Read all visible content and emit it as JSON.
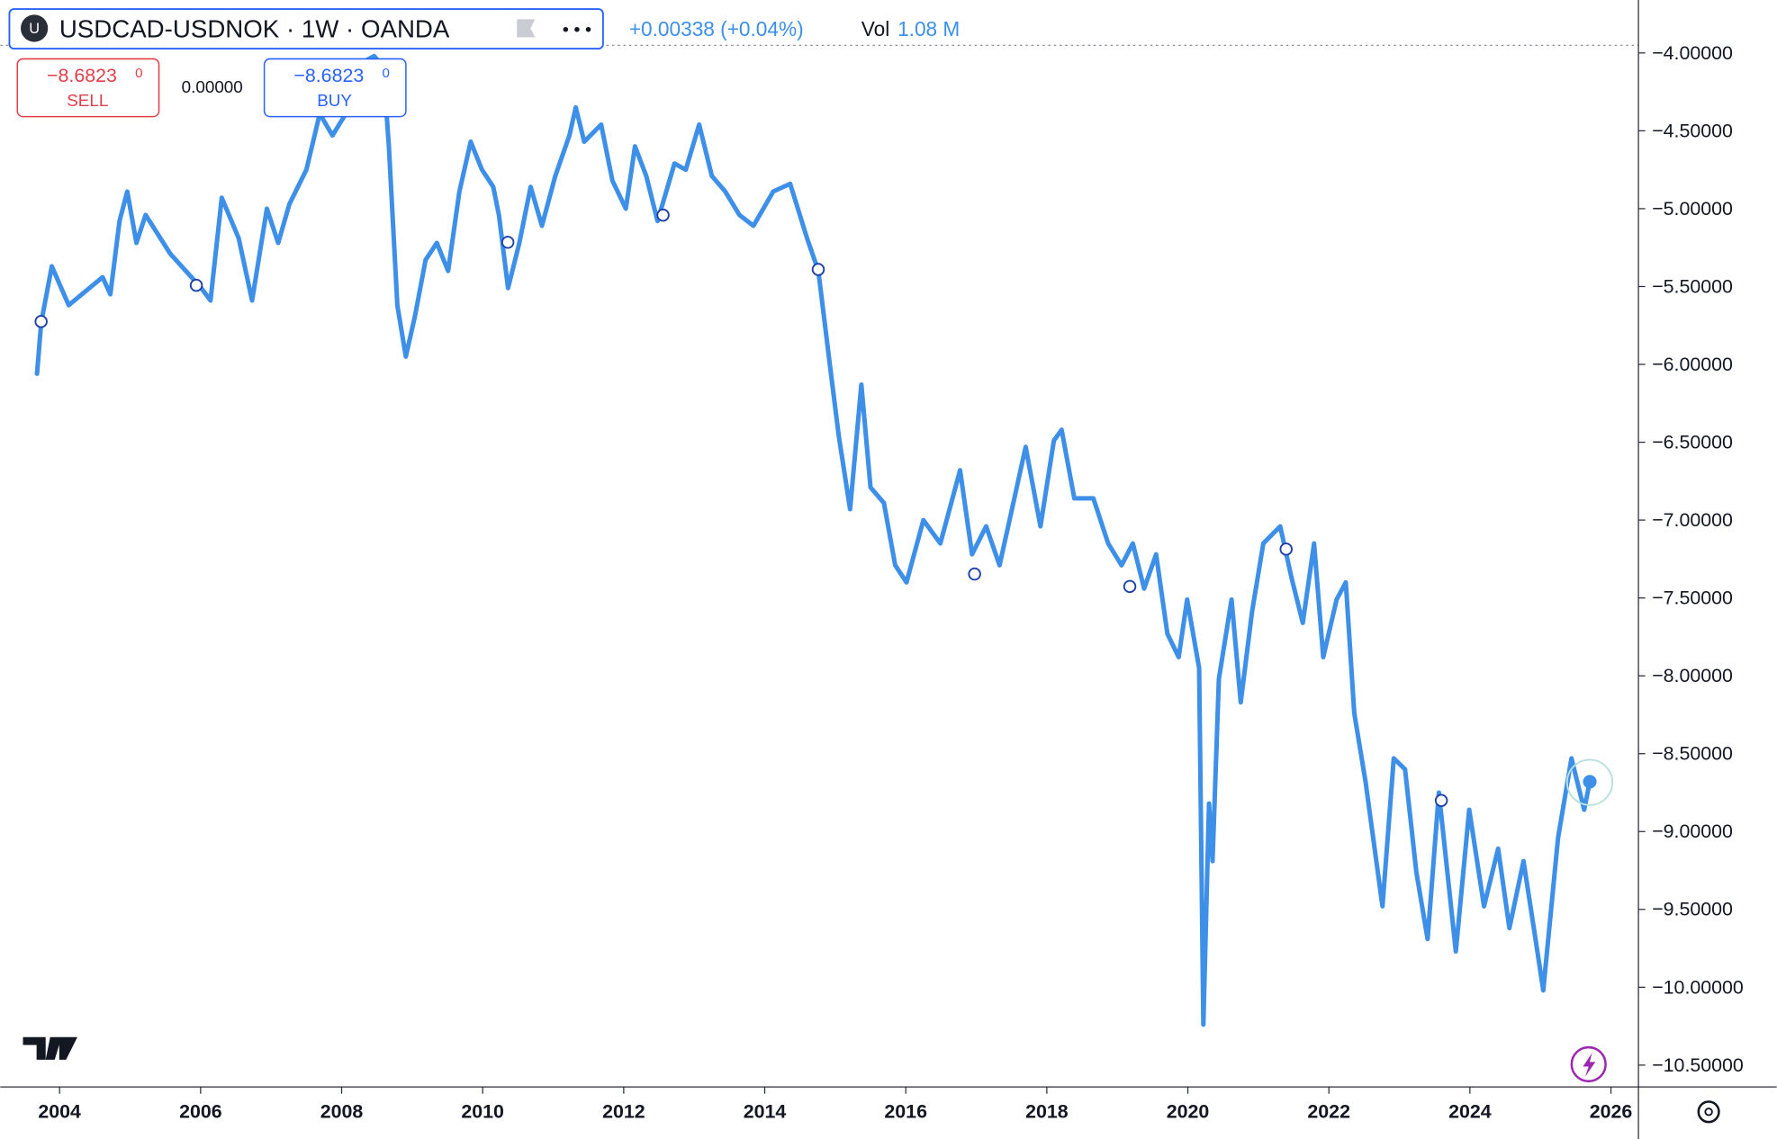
{
  "chart_data": {
    "type": "line",
    "title": "USDCAD-USDNOK · 1W · OANDA",
    "icon_letter": "U",
    "change": "+0.00338 (+0.04%)",
    "volume_label": "Vol",
    "volume": "1.08 M",
    "sell_price": "−8.6823",
    "sell_price_sup": "0",
    "sell_label": "SELL",
    "spread": "0.00000",
    "buy_price": "−8.6823",
    "buy_price_sup": "0",
    "buy_label": "BUY",
    "color": "#3d8fe8",
    "x": [
      2003.68,
      2003.74,
      2003.89,
      2004.13,
      2004.61,
      2004.72,
      2004.85,
      2004.96,
      2005.09,
      2005.22,
      2005.57,
      2006.01,
      2006.14,
      2006.3,
      2006.54,
      2006.73,
      2006.94,
      2007.1,
      2007.26,
      2007.5,
      2007.69,
      2007.87,
      2008.06,
      2008.3,
      2008.46,
      2008.59,
      2008.67,
      2008.79,
      2008.91,
      2009.04,
      2009.19,
      2009.35,
      2009.51,
      2009.67,
      2009.83,
      2009.99,
      2010.15,
      2010.23,
      2010.36,
      2010.52,
      2010.68,
      2010.84,
      2011.03,
      2011.23,
      2011.32,
      2011.44,
      2011.68,
      2011.84,
      2012.03,
      2012.16,
      2012.32,
      2012.48,
      2012.72,
      2012.88,
      2013.07,
      2013.25,
      2013.44,
      2013.64,
      2013.84,
      2014.12,
      2014.36,
      2014.6,
      2014.76,
      2014.92,
      2015.05,
      2015.21,
      2015.37,
      2015.5,
      2015.69,
      2015.85,
      2016.01,
      2016.25,
      2016.49,
      2016.77,
      2016.94,
      2017.14,
      2017.33,
      2017.54,
      2017.7,
      2017.91,
      2018.1,
      2018.21,
      2018.39,
      2018.66,
      2018.87,
      2019.06,
      2019.22,
      2019.38,
      2019.55,
      2019.71,
      2019.87,
      2019.99,
      2020.16,
      2020.22,
      2020.3,
      2020.35,
      2020.44,
      2020.62,
      2020.75,
      2020.91,
      2021.07,
      2021.31,
      2021.47,
      2021.63,
      2021.79,
      2021.92,
      2022.11,
      2022.24,
      2022.36,
      2022.52,
      2022.76,
      2022.92,
      2023.08,
      2023.24,
      2023.4,
      2023.56,
      2023.8,
      2023.99,
      2024.2,
      2024.4,
      2024.56,
      2024.76,
      2024.93,
      2025.04,
      2025.25,
      2025.44,
      2025.62,
      2025.7
    ],
    "values": [
      -6.06,
      -5.73,
      -5.37,
      -5.62,
      -5.44,
      -5.55,
      -5.08,
      -4.89,
      -5.22,
      -5.04,
      -5.29,
      -5.51,
      -5.59,
      -4.93,
      -5.19,
      -5.59,
      -5.0,
      -5.22,
      -4.97,
      -4.75,
      -4.39,
      -4.53,
      -4.39,
      -4.06,
      -4.02,
      -4.09,
      -4.6,
      -5.62,
      -5.95,
      -5.69,
      -5.33,
      -5.22,
      -5.4,
      -4.89,
      -4.57,
      -4.75,
      -4.86,
      -5.04,
      -5.51,
      -5.22,
      -4.86,
      -5.11,
      -4.79,
      -4.53,
      -4.35,
      -4.57,
      -4.46,
      -4.82,
      -5.0,
      -4.6,
      -4.79,
      -5.08,
      -4.71,
      -4.75,
      -4.46,
      -4.79,
      -4.89,
      -5.04,
      -5.11,
      -4.89,
      -4.84,
      -5.19,
      -5.4,
      -5.99,
      -6.46,
      -6.93,
      -6.13,
      -6.79,
      -6.89,
      -7.29,
      -7.4,
      -7.0,
      -7.15,
      -6.68,
      -7.22,
      -7.04,
      -7.29,
      -6.86,
      -6.53,
      -7.04,
      -6.49,
      -6.42,
      -6.86,
      -6.86,
      -7.15,
      -7.29,
      -7.15,
      -7.44,
      -7.22,
      -7.73,
      -7.88,
      -7.51,
      -7.95,
      -10.24,
      -8.82,
      -9.19,
      -8.02,
      -7.51,
      -8.17,
      -7.59,
      -7.15,
      -7.04,
      -7.37,
      -7.66,
      -7.15,
      -7.88,
      -7.51,
      -7.4,
      -8.24,
      -8.68,
      -9.48,
      -8.53,
      -8.6,
      -9.26,
      -9.69,
      -8.75,
      -9.77,
      -8.86,
      -9.48,
      -9.11,
      -9.62,
      -9.19,
      -9.69,
      -10.02,
      -9.04,
      -8.53,
      -8.86,
      -8.68
    ],
    "xlim": [
      2003.16,
      2026.39
    ],
    "xticks": [
      2004,
      2006,
      2008,
      2010,
      2012,
      2014,
      2016,
      2018,
      2020,
      2022,
      2024,
      2026
    ],
    "ylim": [
      -3.66,
      -10.64
    ],
    "yticks": [
      {
        "value": -4,
        "label": "−4.00000"
      },
      {
        "value": -4.5,
        "label": "−4.50000"
      },
      {
        "value": -5,
        "label": "−5.00000"
      },
      {
        "value": -5.5,
        "label": "−5.50000"
      },
      {
        "value": -6,
        "label": "−6.00000"
      },
      {
        "value": -6.5,
        "label": "−6.50000"
      },
      {
        "value": -7,
        "label": "−7.00000"
      },
      {
        "value": -7.5,
        "label": "−7.50000"
      },
      {
        "value": -8,
        "label": "−8.00000"
      },
      {
        "value": -8.5,
        "label": "−8.50000"
      },
      {
        "value": -9,
        "label": "−9.00000"
      },
      {
        "value": -9.5,
        "label": "−9.50000"
      },
      {
        "value": -10,
        "label": "−10.00000"
      },
      {
        "value": -10.5,
        "label": "−10.50000"
      }
    ],
    "grid": true
  }
}
